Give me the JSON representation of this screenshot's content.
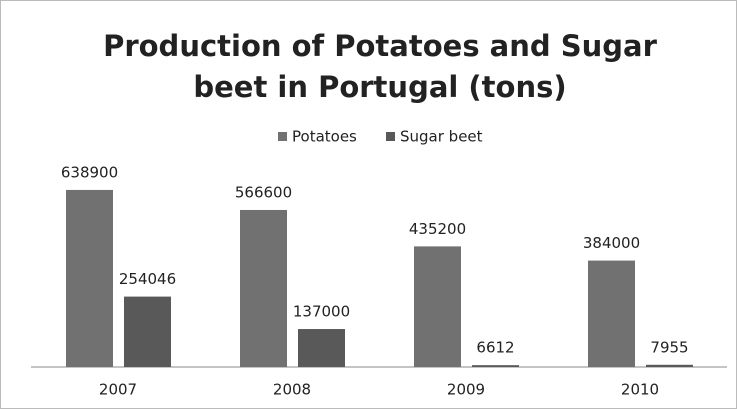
{
  "chart_data": {
    "type": "bar",
    "title": [
      "Production of Potatoes and Sugar",
      "beet in Portugal (tons)"
    ],
    "categories": [
      "2007",
      "2008",
      "2009",
      "2010"
    ],
    "series": [
      {
        "name": "Potatoes",
        "color": "#717171",
        "values": [
          638900,
          566600,
          435200,
          384000
        ]
      },
      {
        "name": "Sugar beet",
        "color": "#595959",
        "values": [
          254046,
          137000,
          6612,
          7955
        ]
      }
    ],
    "ylim": [
      0,
      700000
    ],
    "legend": "top"
  }
}
